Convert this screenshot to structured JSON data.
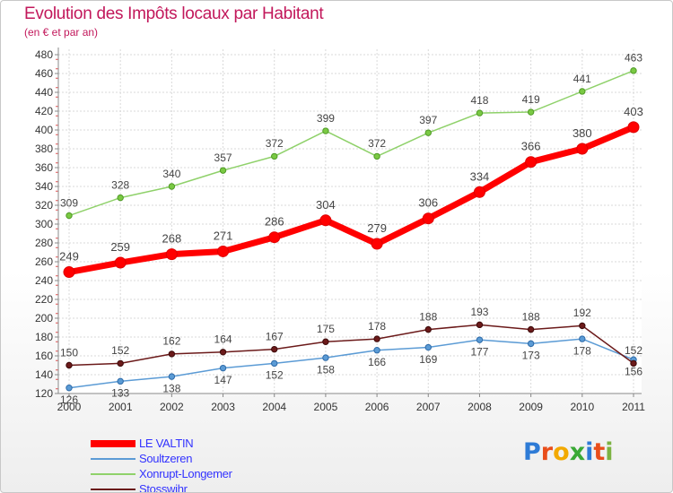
{
  "header": {
    "title": "Evolution des Impôts locaux par Habitant",
    "subtitle": "(en € et par an)"
  },
  "chart_data": {
    "type": "line",
    "x": [
      "2000",
      "2001",
      "2002",
      "2003",
      "2004",
      "2005",
      "2006",
      "2007",
      "2008",
      "2009",
      "2010",
      "2011"
    ],
    "ylim": [
      120,
      480
    ],
    "yticks": [
      120,
      140,
      160,
      180,
      200,
      220,
      240,
      260,
      280,
      300,
      320,
      340,
      360,
      380,
      400,
      420,
      440,
      460,
      480
    ],
    "grid": true,
    "legend_position": "bottom-left",
    "series": [
      {
        "name": "LE VALTIN",
        "color": "#ff0000",
        "values": [
          249,
          259,
          268,
          271,
          286,
          304,
          279,
          306,
          334,
          366,
          380,
          403
        ]
      },
      {
        "name": "Soultzeren",
        "color": "#5b9bd5",
        "values": [
          126,
          133,
          138,
          147,
          152,
          158,
          166,
          169,
          177,
          173,
          178,
          156
        ]
      },
      {
        "name": "Xonrupt-Longemer",
        "color": "#8fd16a",
        "values": [
          309,
          328,
          340,
          357,
          372,
          399,
          372,
          397,
          418,
          419,
          441,
          463
        ]
      },
      {
        "name": "Stosswihr",
        "color": "#6b1a1a",
        "values": [
          150,
          152,
          162,
          164,
          167,
          175,
          178,
          188,
          193,
          188,
          192,
          152
        ]
      }
    ]
  },
  "logo": {
    "letters": [
      "P",
      "r",
      "o",
      "x",
      "i",
      "t",
      "i"
    ],
    "colors": [
      "#2e7bd6",
      "#e94e1b",
      "#f2a900",
      "#3aa935",
      "#2e7bd6",
      "#e94e1b",
      "#7cb342"
    ]
  }
}
